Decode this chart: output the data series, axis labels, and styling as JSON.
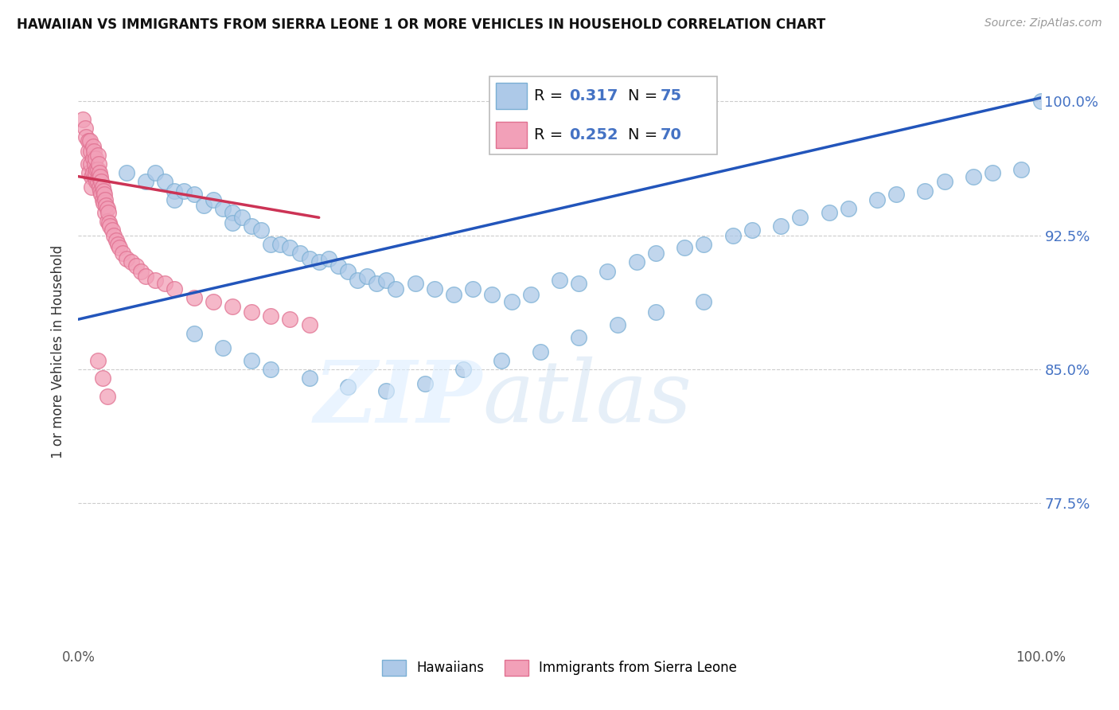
{
  "title": "HAWAIIAN VS IMMIGRANTS FROM SIERRA LEONE 1 OR MORE VEHICLES IN HOUSEHOLD CORRELATION CHART",
  "source": "Source: ZipAtlas.com",
  "ylabel": "1 or more Vehicles in Household",
  "xlim": [
    0.0,
    1.0
  ],
  "ylim": [
    0.695,
    1.025
  ],
  "yticks": [
    0.775,
    0.85,
    0.925,
    1.0
  ],
  "ytick_labels": [
    "77.5%",
    "85.0%",
    "92.5%",
    "100.0%"
  ],
  "xticks": [
    0.0,
    0.1,
    0.2,
    0.3,
    0.4,
    0.5,
    0.6,
    0.7,
    0.8,
    0.9,
    1.0
  ],
  "xtick_labels": [
    "0.0%",
    "",
    "",
    "",
    "",
    "",
    "",
    "",
    "",
    "",
    "100.0%"
  ],
  "blue_color": "#adc9e8",
  "blue_edge": "#7aafd4",
  "pink_color": "#f2a0b8",
  "pink_edge": "#e07090",
  "trend_blue": "#2255bb",
  "trend_pink": "#cc3355",
  "blue_trend_x0": 0.0,
  "blue_trend_x1": 1.0,
  "blue_trend_y0": 0.878,
  "blue_trend_y1": 1.002,
  "pink_trend_x0": 0.0,
  "pink_trend_x1": 0.25,
  "pink_trend_y0": 0.958,
  "pink_trend_y1": 0.935,
  "blue_x": [
    0.02,
    0.05,
    0.07,
    0.08,
    0.09,
    0.1,
    0.1,
    0.11,
    0.12,
    0.13,
    0.14,
    0.15,
    0.16,
    0.16,
    0.17,
    0.18,
    0.19,
    0.2,
    0.21,
    0.22,
    0.23,
    0.24,
    0.25,
    0.26,
    0.27,
    0.28,
    0.29,
    0.3,
    0.31,
    0.32,
    0.33,
    0.35,
    0.37,
    0.39,
    0.41,
    0.43,
    0.45,
    0.47,
    0.5,
    0.52,
    0.55,
    0.58,
    0.6,
    0.63,
    0.65,
    0.68,
    0.7,
    0.73,
    0.75,
    0.78,
    0.8,
    0.83,
    0.85,
    0.88,
    0.9,
    0.93,
    0.95,
    0.98,
    1.0,
    0.12,
    0.15,
    0.18,
    0.2,
    0.24,
    0.28,
    0.32,
    0.36,
    0.4,
    0.44,
    0.48,
    0.52,
    0.56,
    0.6,
    0.65
  ],
  "blue_y": [
    0.96,
    0.96,
    0.955,
    0.96,
    0.955,
    0.95,
    0.945,
    0.95,
    0.948,
    0.942,
    0.945,
    0.94,
    0.938,
    0.932,
    0.935,
    0.93,
    0.928,
    0.92,
    0.92,
    0.918,
    0.915,
    0.912,
    0.91,
    0.912,
    0.908,
    0.905,
    0.9,
    0.902,
    0.898,
    0.9,
    0.895,
    0.898,
    0.895,
    0.892,
    0.895,
    0.892,
    0.888,
    0.892,
    0.9,
    0.898,
    0.905,
    0.91,
    0.915,
    0.918,
    0.92,
    0.925,
    0.928,
    0.93,
    0.935,
    0.938,
    0.94,
    0.945,
    0.948,
    0.95,
    0.955,
    0.958,
    0.96,
    0.962,
    1.0,
    0.87,
    0.862,
    0.855,
    0.85,
    0.845,
    0.84,
    0.838,
    0.842,
    0.85,
    0.855,
    0.86,
    0.868,
    0.875,
    0.882,
    0.888
  ],
  "pink_x": [
    0.005,
    0.007,
    0.008,
    0.01,
    0.01,
    0.01,
    0.011,
    0.012,
    0.013,
    0.013,
    0.014,
    0.014,
    0.015,
    0.015,
    0.015,
    0.016,
    0.017,
    0.017,
    0.018,
    0.018,
    0.019,
    0.019,
    0.02,
    0.02,
    0.02,
    0.021,
    0.021,
    0.022,
    0.022,
    0.023,
    0.023,
    0.024,
    0.024,
    0.025,
    0.025,
    0.026,
    0.026,
    0.027,
    0.028,
    0.028,
    0.029,
    0.03,
    0.03,
    0.031,
    0.032,
    0.033,
    0.035,
    0.037,
    0.039,
    0.041,
    0.043,
    0.046,
    0.05,
    0.055,
    0.06,
    0.065,
    0.07,
    0.08,
    0.09,
    0.1,
    0.12,
    0.14,
    0.16,
    0.18,
    0.2,
    0.22,
    0.24,
    0.02,
    0.025,
    0.03
  ],
  "pink_y": [
    0.99,
    0.985,
    0.98,
    0.978,
    0.972,
    0.965,
    0.96,
    0.978,
    0.972,
    0.965,
    0.958,
    0.952,
    0.975,
    0.968,
    0.96,
    0.972,
    0.965,
    0.958,
    0.968,
    0.96,
    0.962,
    0.955,
    0.97,
    0.962,
    0.955,
    0.965,
    0.958,
    0.96,
    0.952,
    0.958,
    0.95,
    0.955,
    0.948,
    0.952,
    0.945,
    0.95,
    0.943,
    0.948,
    0.945,
    0.938,
    0.942,
    0.94,
    0.933,
    0.938,
    0.932,
    0.93,
    0.928,
    0.925,
    0.922,
    0.92,
    0.918,
    0.915,
    0.912,
    0.91,
    0.908,
    0.905,
    0.902,
    0.9,
    0.898,
    0.895,
    0.89,
    0.888,
    0.885,
    0.882,
    0.88,
    0.878,
    0.875,
    0.855,
    0.845,
    0.835
  ]
}
